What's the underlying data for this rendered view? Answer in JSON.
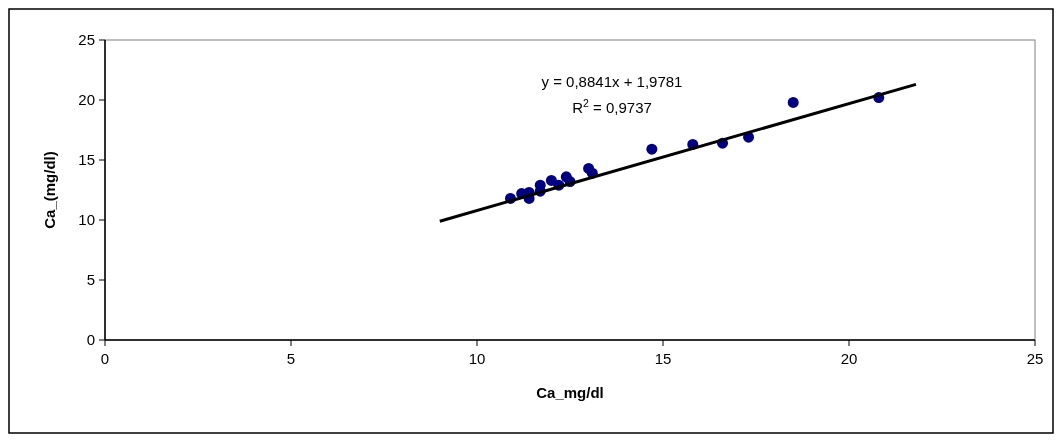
{
  "chart_data": {
    "type": "scatter",
    "xlabel": "Ca_mg/dl",
    "ylabel": "Ca_(mg/dl)",
    "xlim": [
      0,
      25
    ],
    "ylim": [
      0,
      25
    ],
    "xticks": [
      0,
      5,
      10,
      15,
      20,
      25
    ],
    "yticks": [
      0,
      5,
      10,
      15,
      20,
      25
    ],
    "grid": false,
    "series": [
      {
        "color": "#000080",
        "marker": "circle",
        "x": [
          10.9,
          11.2,
          11.4,
          11.4,
          11.7,
          11.7,
          12.0,
          12.2,
          12.4,
          12.5,
          13.0,
          13.1,
          14.7,
          15.8,
          16.6,
          17.3,
          18.5,
          20.8
        ],
        "values": [
          11.8,
          12.2,
          12.3,
          11.8,
          12.9,
          12.4,
          13.3,
          12.9,
          13.6,
          13.2,
          14.3,
          13.9,
          15.9,
          16.3,
          16.4,
          16.9,
          19.8,
          20.2
        ]
      },
      {
        "type": "line",
        "color": "#000000",
        "marker": "none",
        "x": [
          9,
          21.8
        ],
        "values": [
          9.9,
          21.3
        ]
      }
    ],
    "annotations": [
      "y = 0,8841x + 1,9781",
      "R$^{2}$ = 0,9737"
    ]
  }
}
